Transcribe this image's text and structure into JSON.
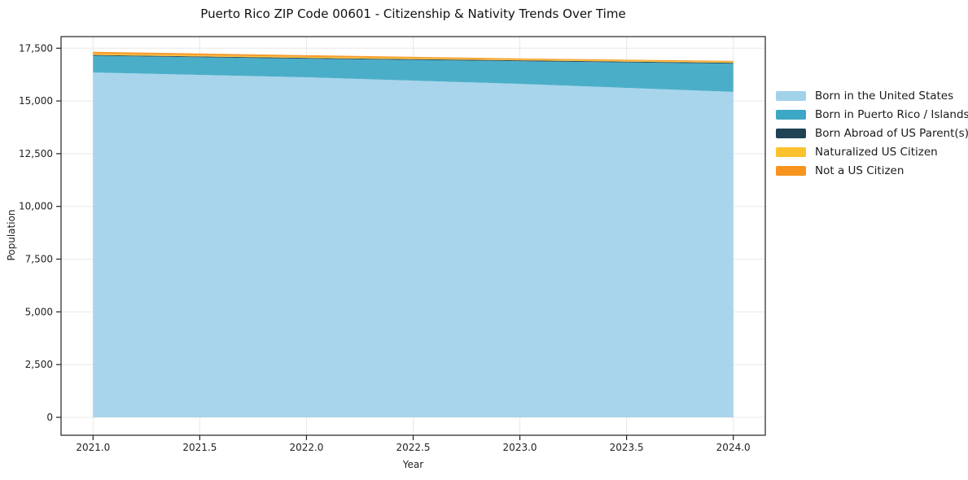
{
  "chart_data": {
    "type": "area",
    "stacked": true,
    "title": "Puerto Rico ZIP Code 00601 - Citizenship & Nativity Trends Over Time",
    "xlabel": "Year",
    "ylabel": "Population",
    "x": [
      2021,
      2022,
      2023,
      2024
    ],
    "series": [
      {
        "name": "Born in the United States",
        "color": "#A1D2E9",
        "values": [
          16350,
          16120,
          15810,
          15430
        ]
      },
      {
        "name": "Born in Puerto Rico / Islands",
        "color": "#3DA8C5",
        "values": [
          790,
          880,
          1075,
          1340
        ]
      },
      {
        "name": "Born Abroad of US Parent(s)",
        "color": "#1F4255",
        "values": [
          40,
          40,
          40,
          40
        ]
      },
      {
        "name": "Naturalized US Citizen",
        "color": "#FBC22D",
        "values": [
          50,
          50,
          40,
          50
        ]
      },
      {
        "name": "Not a US Citizen",
        "color": "#F6941E",
        "values": [
          100,
          80,
          50,
          40
        ]
      }
    ],
    "xticks": [
      "2021.0",
      "2021.5",
      "2022.0",
      "2022.5",
      "2023.0",
      "2023.5",
      "2024.0"
    ],
    "xtick_values": [
      2021,
      2021.5,
      2022,
      2022.5,
      2023,
      2023.5,
      2024
    ],
    "yticks": [
      "0",
      "2,500",
      "5,000",
      "7,500",
      "10,000",
      "12,500",
      "15,000",
      "17,500"
    ],
    "ytick_values": [
      0,
      2500,
      5000,
      7500,
      10000,
      12500,
      15000,
      17500
    ],
    "xlim": [
      2020.85,
      2024.15
    ],
    "ylim": [
      -850,
      18050
    ],
    "grid": true,
    "grid_color": "#e8e8e8",
    "spine_color": "#222222",
    "tick_label_color": "#222222",
    "legend_position": "right"
  }
}
